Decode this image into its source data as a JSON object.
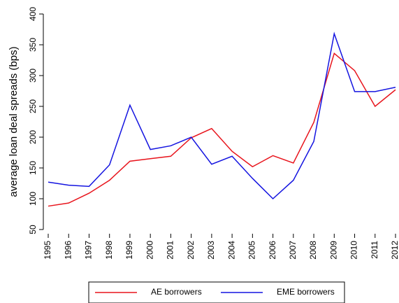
{
  "chart_data": {
    "type": "line",
    "y_label": "average loan deal spreads (bps)",
    "categories": [
      "1995",
      "1996",
      "1997",
      "1998",
      "1999",
      "2000",
      "2001",
      "2002",
      "2003",
      "2004",
      "2005",
      "2006",
      "2007",
      "2008",
      "2009",
      "2010",
      "2011",
      "2012"
    ],
    "series": [
      {
        "name": "AE borrowers",
        "color": "#e8141c",
        "values": [
          88,
          93,
          109,
          130,
          161,
          165,
          169,
          199,
          214,
          177,
          152,
          170,
          158,
          224,
          336,
          308,
          250,
          277
        ]
      },
      {
        "name": "EME borrowers",
        "color": "#1414e0",
        "values": [
          127,
          122,
          120,
          155,
          252,
          180,
          186,
          200,
          156,
          169,
          133,
          100,
          130,
          193,
          368,
          274,
          274,
          281
        ]
      }
    ],
    "ylim": [
      50,
      400
    ],
    "yticks": [
      50,
      100,
      150,
      200,
      250,
      300,
      350,
      400
    ],
    "legend": "bottom"
  }
}
